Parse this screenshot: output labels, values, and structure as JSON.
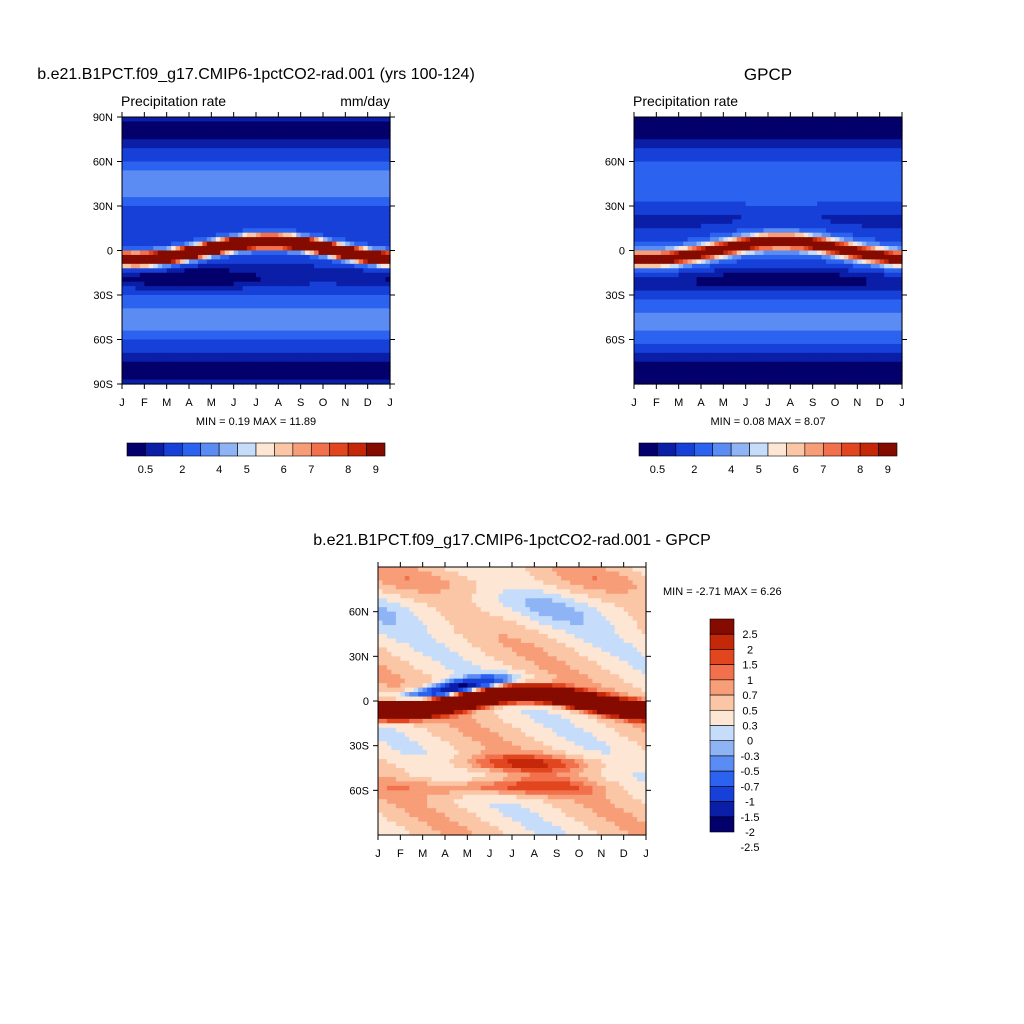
{
  "colors": {
    "seq_palette": [
      "#03006b",
      "#0a1ea8",
      "#1640d8",
      "#2c62f0",
      "#5a8cf3",
      "#8fb4f6",
      "#c5dcfa",
      "#fde7d4",
      "#fbc6a6",
      "#f79d77",
      "#f2704c",
      "#e2461f",
      "#c42809",
      "#850a00"
    ],
    "diff_palette": [
      "#03006b",
      "#0a1ea8",
      "#1640d8",
      "#2c62f0",
      "#5a8cf3",
      "#8fb4f6",
      "#c5dcfa",
      "#fde7d4",
      "#fbc6a6",
      "#f79d77",
      "#f2704c",
      "#e2461f",
      "#c42809",
      "#850a00"
    ]
  },
  "chart_data": [
    {
      "type": "heatmap",
      "title": "b.e21.B1PCT.f09_g17.CMIP6-1pctCO2-rad.001 (yrs 100-124)",
      "left_label": "Precipitation rate",
      "right_label": "mm/day",
      "x_ticks": [
        "J",
        "F",
        "M",
        "A",
        "M",
        "J",
        "J",
        "A",
        "S",
        "O",
        "N",
        "D",
        "J"
      ],
      "y_ticks": [
        "90N",
        "60N",
        "30N",
        "0",
        "30S",
        "60S",
        "90S"
      ],
      "min_max_text": "MIN =   0.19 MAX =   11.89",
      "levels": [
        "0.5",
        "2",
        "4",
        "5",
        "6",
        "7",
        "8",
        "9"
      ],
      "itcz_max": 11.89,
      "grid": false
    },
    {
      "type": "heatmap",
      "title": "GPCP",
      "left_label": "Precipitation rate",
      "right_label": "",
      "x_ticks": [
        "J",
        "F",
        "M",
        "A",
        "M",
        "J",
        "J",
        "A",
        "S",
        "O",
        "N",
        "D",
        "J"
      ],
      "y_ticks": [
        "60N",
        "30N",
        "0",
        "30S",
        "60S"
      ],
      "min_max_text": "MIN =   0.08 MAX =   8.07",
      "levels": [
        "0.5",
        "2",
        "4",
        "5",
        "6",
        "7",
        "8",
        "9"
      ],
      "itcz_max": 8.07,
      "grid": false
    },
    {
      "type": "heatmap",
      "title": "b.e21.B1PCT.f09_g17.CMIP6-1pctCO2-rad.001 - GPCP",
      "left_label": "",
      "right_label": "",
      "x_ticks": [
        "J",
        "F",
        "M",
        "A",
        "M",
        "J",
        "J",
        "A",
        "S",
        "O",
        "N",
        "D",
        "J"
      ],
      "y_ticks": [
        "60N",
        "30N",
        "0",
        "30S",
        "60S"
      ],
      "min_max_text": "MIN =  -2.71 MAX =   6.26",
      "levels": [
        "2.5",
        "2",
        "1.5",
        "1",
        "0.7",
        "0.5",
        "0.3",
        "0",
        "-0.3",
        "-0.5",
        "-0.7",
        "-1",
        "-1.5",
        "-2",
        "-2.5"
      ],
      "min": -2.71,
      "max": 6.26,
      "grid": false
    }
  ]
}
